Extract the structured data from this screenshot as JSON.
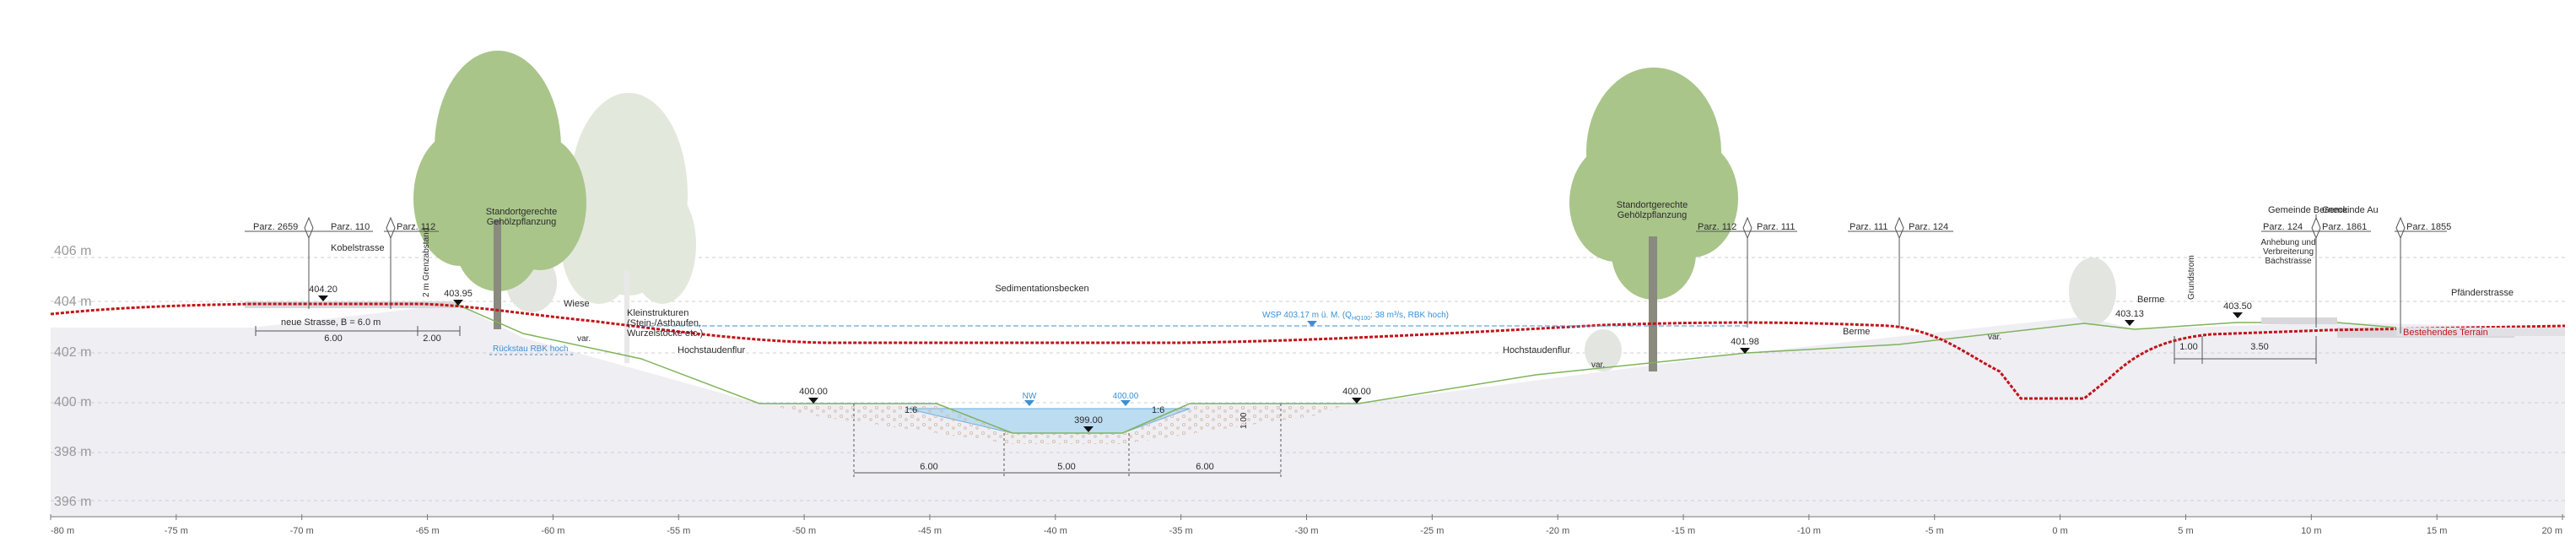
{
  "elevation_labels": [
    "406 m",
    "404 m",
    "402 m",
    "400 m",
    "398 m",
    "396 m"
  ],
  "x_ticks": [
    "-80 m",
    "-75 m",
    "-70 m",
    "-65 m",
    "-60 m",
    "-55 m",
    "-50 m",
    "-45 m",
    "-40 m",
    "-35 m",
    "-30 m",
    "-25 m",
    "-20 m",
    "-15 m",
    "-10 m",
    "-5 m",
    "0 m",
    "5 m",
    "10 m",
    "15 m",
    "20 m"
  ],
  "parcels": [
    {
      "left": "Parz. 2659",
      "right": "Parz. 110"
    },
    {
      "left": "",
      "right": "Parz. 112"
    },
    {
      "left": "Parz. 112",
      "right": "Parz. 111"
    },
    {
      "left": "Parz. 111",
      "right": "Parz. 124"
    },
    {
      "left": "Parz. 124",
      "right": "Parz. 1861"
    },
    {
      "left": "",
      "right": "Parz. 1855"
    }
  ],
  "municipalities": {
    "left": "Gemeinde Berneck",
    "right": "Gemeinde Au"
  },
  "labels": {
    "kobelstrasse": "Kobelstrasse",
    "grenzabstand": "2 m Grenzabstand",
    "bepflanzung_left_1": "Standortgerechte",
    "bepflanzung_left_2": "Gehölzpflanzung",
    "bepflanzung_right_1": "Standortgerechte",
    "bepflanzung_right_2": "Gehölzpflanzung",
    "sedimentation": "Sedimentationsbecken",
    "wiese": "Wiese",
    "kleinstrukturen_1": "Kleinstrukturen",
    "kleinstrukturen_2": "(Stein-/Asthaufen,",
    "kleinstrukturen_3": "Wurzelstöcke etc.)",
    "neue_strasse": "neue Strasse, B = 6.0 m",
    "dim_600_road": "6.00",
    "dim_200": "2.00",
    "rueckstau": "Rückstau RBK hoch",
    "hochstaudenflur_left": "Hochstaudenflur",
    "hochstaudenflur_right": "Hochstaudenflur",
    "wsp": "WSP 403.17 m ü. M. (Q",
    "wsp_sub": "HQ100",
    "wsp_end": ": 38 m³/s, RBK hoch)",
    "berme_mid": "Berme",
    "berme_right": "Berme",
    "grundstrom": "Grundstrom",
    "anhebung_1": "Anhebung und",
    "anhebung_2": "Verbreiterung",
    "anhebung_3": "Bachstrasse",
    "pfaenderstrasse": "Pfänderstrasse",
    "bestehendes_terrain": "Bestehendes Terrain",
    "var_1": "var.",
    "var_2": "var.",
    "var_3": "var.",
    "slope_left": "1:6",
    "slope_right": "1:6",
    "depth": "1.00",
    "nw": "NW",
    "mw": "400.00",
    "dim_bottom_1": "6.00",
    "dim_bottom_2": "5.00",
    "dim_bottom_3": "6.00",
    "dim_right_1": "1.00",
    "dim_right_2": "3.50"
  },
  "spot_heights": {
    "h404_20": "404.20",
    "h403_95": "403.95",
    "h400_00_left": "400.00",
    "h399_00": "399.00",
    "h400_00_right": "400.00",
    "h401_98": "401.98",
    "h403_13": "403.13",
    "h403_50": "403.50"
  },
  "colors": {
    "existing_terrain": "#c0141a",
    "water": "#bcdcf2",
    "water_label": "#3d8fd0",
    "design_profile": "#7fb35a",
    "ground_fill": "#efeef3",
    "tree": "#9fbd7e",
    "tree_faded": "#dfe6d6"
  }
}
